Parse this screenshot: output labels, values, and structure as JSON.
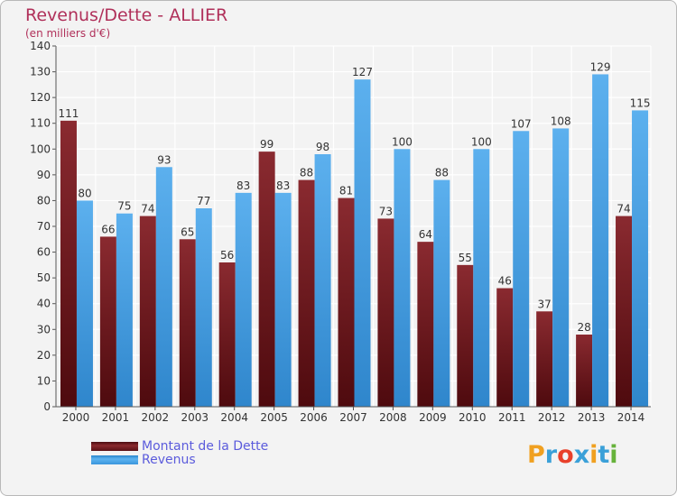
{
  "chart_data": {
    "type": "bar",
    "title": "Revenus/Dette - ALLIER",
    "subtitle": "(en milliers d'€)",
    "categories": [
      "2000",
      "2001",
      "2002",
      "2003",
      "2004",
      "2005",
      "2006",
      "2007",
      "2008",
      "2009",
      "2010",
      "2011",
      "2012",
      "2013",
      "2014"
    ],
    "series": [
      {
        "name": "Montant de la Dette",
        "color": "#7a1a1e",
        "values": [
          111,
          66,
          74,
          65,
          56,
          99,
          88,
          81,
          73,
          64,
          55,
          46,
          37,
          28,
          74
        ]
      },
      {
        "name": "Revenus",
        "color": "#4fa6e6",
        "values": [
          80,
          75,
          93,
          77,
          83,
          83,
          98,
          127,
          100,
          88,
          100,
          107,
          108,
          129,
          115
        ]
      }
    ],
    "ylim": [
      0,
      140
    ],
    "yticks": [
      0,
      10,
      20,
      30,
      40,
      50,
      60,
      70,
      80,
      90,
      100,
      110,
      120,
      130,
      140
    ],
    "grid": true,
    "legend_position": "bottom-left"
  },
  "legend": {
    "debt_label": "Montant de la Dette",
    "revenue_label": "Revenus"
  },
  "logo": {
    "text": "Proxiti",
    "letters": [
      "P",
      "r",
      "o",
      "x",
      "i",
      "t",
      "i"
    ],
    "colors": [
      "#f0a020",
      "#3aa0d8",
      "#e8402a",
      "#3aa0d8",
      "#f0a020",
      "#3aa0d8",
      "#66b23a"
    ]
  }
}
